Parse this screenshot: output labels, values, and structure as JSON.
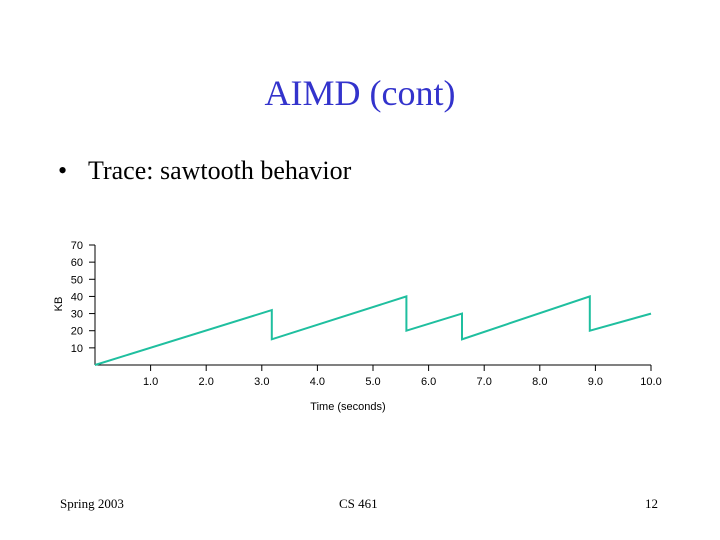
{
  "slide": {
    "title": "AIMD (cont)",
    "bullet": "Trace: sawtooth behavior",
    "bullet_marker": "•",
    "footer_left": "Spring 2003",
    "footer_center": "CS 461",
    "footer_right": "12",
    "title_color": "#3333cc",
    "line_color": "#1fbf9f"
  },
  "chart_data": {
    "type": "line",
    "title": "",
    "xlabel": "Time (seconds)",
    "ylabel": "KB",
    "xlim": [
      0,
      10.0
    ],
    "ylim": [
      0,
      70
    ],
    "xticks": [
      "1.0",
      "2.0",
      "3.0",
      "4.0",
      "5.0",
      "6.0",
      "7.0",
      "8.0",
      "9.0",
      "10.0"
    ],
    "yticks": [
      "10",
      "20",
      "30",
      "40",
      "50",
      "60",
      "70"
    ],
    "grid": false,
    "series": [
      {
        "x": [
          0.0,
          3.18,
          3.18,
          5.6,
          5.6,
          6.6,
          6.6,
          8.9,
          8.9,
          10.0
        ],
        "y": [
          0,
          32,
          15,
          40,
          20,
          30,
          15,
          40,
          20,
          30
        ]
      }
    ]
  }
}
